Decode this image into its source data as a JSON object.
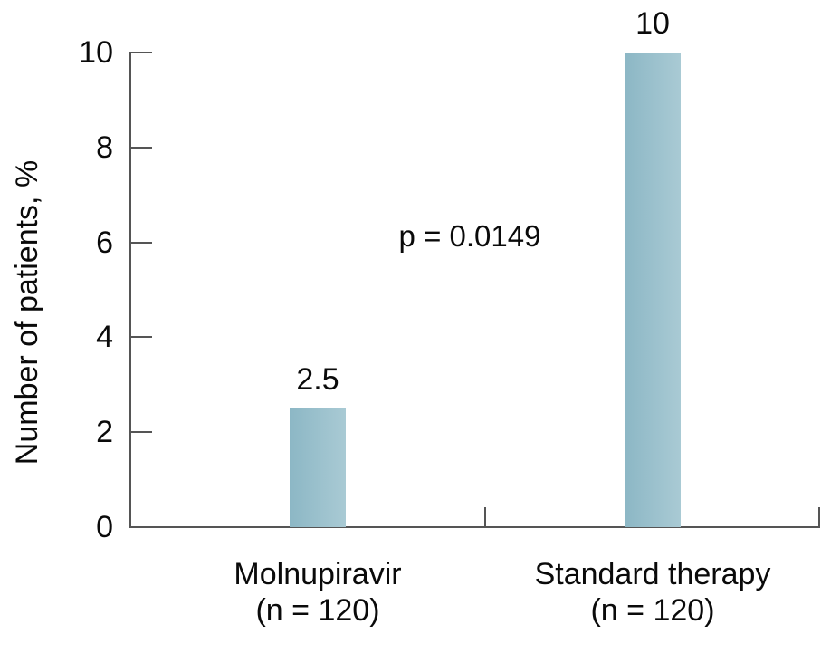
{
  "chart_data": {
    "type": "bar",
    "title": "",
    "xlabel": "",
    "ylabel": "Number of patients, %",
    "ylim": [
      0,
      10
    ],
    "yticks": [
      0,
      2,
      4,
      6,
      8,
      10
    ],
    "grid": false,
    "legend": "none",
    "categories": [
      "Molnupiravir",
      "Standard therapy"
    ],
    "category_sublabels": [
      "(n = 120)",
      "(n = 120)"
    ],
    "values": [
      2.5,
      10
    ],
    "value_labels": [
      "2.5",
      "10"
    ],
    "annotation": {
      "text": "p = 0.0149"
    },
    "colors": {
      "bar_gradient_left": "#8cb7c5",
      "bar_gradient_right": "#a9cad4",
      "axis": "#555555",
      "text": "#0a0a0a",
      "background": "#ffffff"
    }
  }
}
